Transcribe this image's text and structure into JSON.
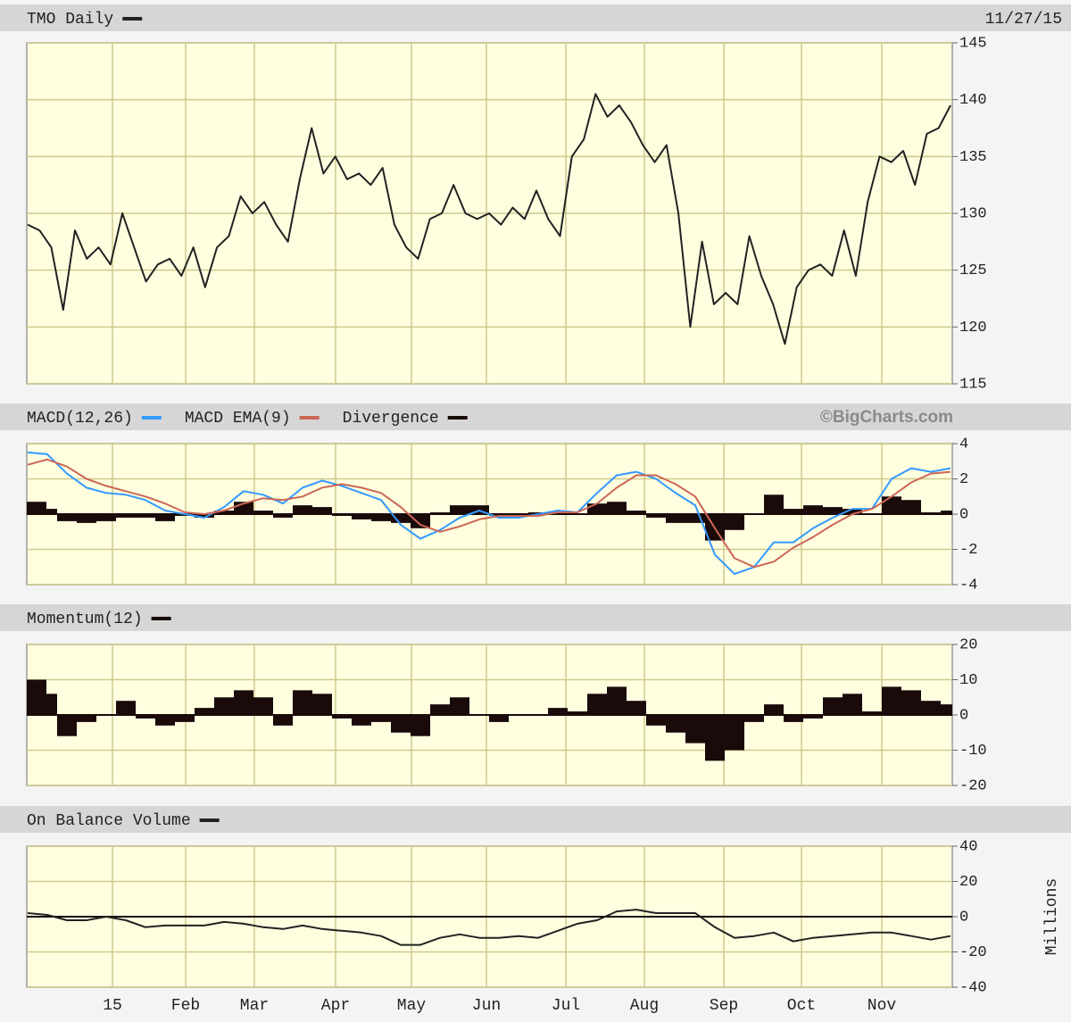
{
  "chart_data": [
    {
      "type": "line",
      "date": "11/27/15",
      "series": [
        {
          "name": "TMO Daily",
          "color": "#222222",
          "style": "line",
          "values": [
            129,
            128.5,
            127,
            121.5,
            128.5,
            126,
            127,
            125.5,
            130,
            127,
            124,
            125.5,
            126,
            124.5,
            127,
            123.5,
            127,
            128,
            131.5,
            130,
            131,
            129,
            127.5,
            133,
            137.5,
            133.5,
            135,
            133,
            133.5,
            132.5,
            134,
            129,
            127,
            126,
            129.5,
            130,
            132.5,
            130,
            129.5,
            130,
            129,
            130.5,
            129.5,
            132,
            129.5,
            128,
            135,
            136.5,
            140.5,
            138.5,
            139.5,
            138,
            136,
            134.5,
            136,
            130,
            120,
            127.5,
            122,
            123,
            122,
            128,
            124.5,
            122,
            118.5,
            123.5,
            125,
            125.5,
            124.5,
            128.5,
            124.5,
            131,
            135,
            134.5,
            135.5,
            132.5,
            137,
            137.5,
            139.5
          ]
        }
      ],
      "ylim": [
        115,
        145
      ],
      "yticks": [
        115,
        120,
        125,
        130,
        135,
        140,
        145
      ],
      "grid": true
    },
    {
      "type": "line",
      "credit": "©BigCharts.com",
      "series": [
        {
          "name": "MACD(12,26)",
          "color": "#3399ff",
          "style": "line",
          "values": [
            3.5,
            3.4,
            2.3,
            1.5,
            1.2,
            1.1,
            0.8,
            0.2,
            0.0,
            -0.2,
            0.4,
            1.3,
            1.1,
            0.6,
            1.5,
            1.9,
            1.6,
            1.2,
            0.8,
            -0.6,
            -1.4,
            -0.9,
            -0.2,
            0.2,
            -0.2,
            -0.2,
            0.0,
            0.2,
            0.1,
            1.2,
            2.2,
            2.4,
            2.0,
            1.2,
            0.5,
            -2.3,
            -3.4,
            -3.0,
            -1.6,
            -1.6,
            -0.8,
            -0.2,
            0.3,
            0.3,
            2.0,
            2.6,
            2.4,
            2.6
          ]
        },
        {
          "name": "MACD EMA(9)",
          "color": "#cc6655",
          "style": "line",
          "values": [
            2.8,
            3.1,
            2.7,
            2.0,
            1.6,
            1.3,
            1.0,
            0.6,
            0.1,
            0.0,
            0.2,
            0.6,
            0.9,
            0.8,
            1.0,
            1.5,
            1.7,
            1.5,
            1.2,
            0.4,
            -0.6,
            -1.0,
            -0.7,
            -0.3,
            -0.1,
            -0.1,
            -0.1,
            0.1,
            0.1,
            0.6,
            1.5,
            2.2,
            2.2,
            1.7,
            1.0,
            -0.8,
            -2.5,
            -3.0,
            -2.7,
            -1.9,
            -1.3,
            -0.6,
            0.0,
            0.3,
            1.0,
            1.8,
            2.3,
            2.4
          ]
        },
        {
          "name": "Divergence",
          "color": "#1a0a0a",
          "style": "histogram",
          "values": [
            0.7,
            0.3,
            -0.4,
            -0.5,
            -0.4,
            -0.2,
            -0.2,
            -0.4,
            -0.1,
            -0.2,
            0.2,
            0.7,
            0.2,
            -0.2,
            0.5,
            0.4,
            -0.1,
            -0.3,
            -0.4,
            -0.5,
            -0.8,
            0.1,
            0.5,
            0.5,
            -0.1,
            -0.1,
            0.1,
            0.1,
            0,
            0.6,
            0.7,
            0.2,
            -0.2,
            -0.5,
            -0.5,
            -1.5,
            -0.9,
            0,
            1.1,
            0.3,
            0.5,
            0.4,
            0.3,
            0,
            1.0,
            0.8,
            0.1,
            0.2
          ]
        }
      ],
      "ylim": [
        -4,
        4
      ],
      "yticks": [
        -4,
        -2,
        0,
        2,
        4
      ],
      "grid": true
    },
    {
      "type": "line",
      "series": [
        {
          "name": "Momentum(12)",
          "color": "#1a0a0a",
          "style": "histogram",
          "values": [
            10,
            6,
            -6,
            -2,
            0,
            4,
            -1,
            -3,
            -2,
            2,
            5,
            7,
            5,
            -3,
            7,
            6,
            -1,
            -3,
            -2,
            -5,
            -6,
            3,
            5,
            0,
            -2,
            0,
            0,
            2,
            1,
            6,
            8,
            4,
            -3,
            -5,
            -8,
            -13,
            -10,
            -2,
            3,
            -2,
            -1,
            5,
            6,
            1,
            8,
            7,
            4,
            3
          ]
        }
      ],
      "ylim": [
        -20,
        20
      ],
      "yticks": [
        -20,
        -10,
        0,
        10,
        20
      ],
      "grid": true
    },
    {
      "type": "line",
      "y_label": "Millions",
      "x_labels": [
        "15",
        "Feb",
        "Mar",
        "Apr",
        "May",
        "Jun",
        "Jul",
        "Aug",
        "Sep",
        "Oct",
        "Nov"
      ],
      "series": [
        {
          "name": "On Balance Volume",
          "color": "#222222",
          "style": "line",
          "values": [
            2,
            1,
            -2,
            -2,
            0,
            -2,
            -6,
            -5,
            -5,
            -5,
            -3,
            -4,
            -6,
            -7,
            -5,
            -7,
            -8,
            -9,
            -11,
            -16,
            -16,
            -12,
            -10,
            -12,
            -12,
            -11,
            -12,
            -8,
            -4,
            -2,
            3,
            4,
            2,
            2,
            2,
            -6,
            -12,
            -11,
            -9,
            -14,
            -12,
            -11,
            -10,
            -9,
            -9,
            -11,
            -13,
            -11
          ]
        }
      ],
      "ylim": [
        -40,
        40
      ],
      "yticks": [
        -40,
        -20,
        0,
        20,
        40
      ],
      "grid": true
    }
  ]
}
